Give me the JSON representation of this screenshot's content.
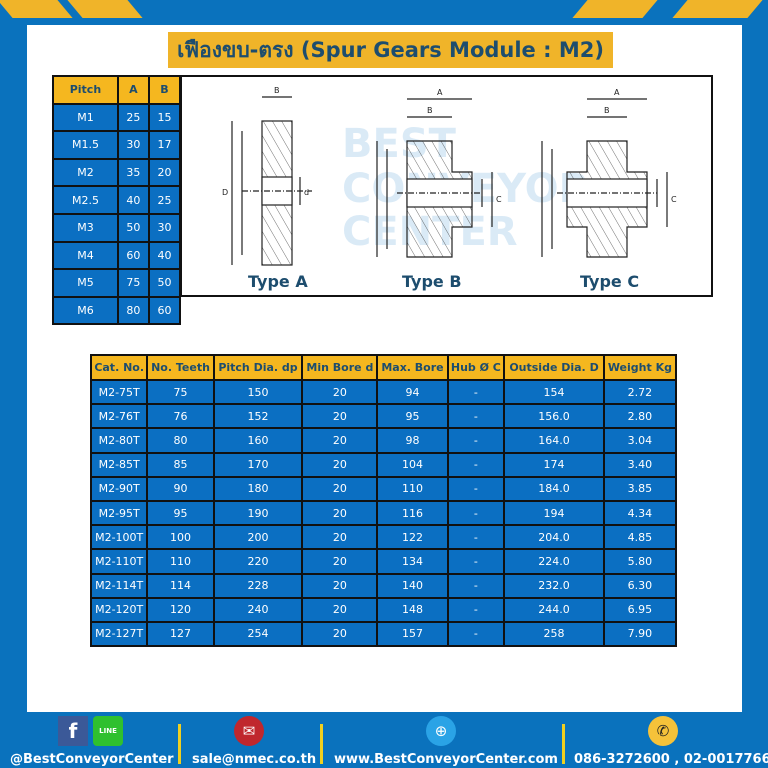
{
  "title": "เฟืองขบ-ตรง (Spur Gears Module : M2)",
  "pitch_table": {
    "headers": [
      "Pitch",
      "A",
      "B"
    ],
    "rows": [
      [
        "M1",
        "25",
        "15"
      ],
      [
        "M1.5",
        "30",
        "17"
      ],
      [
        "M2",
        "35",
        "20"
      ],
      [
        "M2.5",
        "40",
        "25"
      ],
      [
        "M3",
        "50",
        "30"
      ],
      [
        "M4",
        "60",
        "40"
      ],
      [
        "M5",
        "75",
        "50"
      ],
      [
        "M6",
        "80",
        "60"
      ]
    ]
  },
  "diagrams": {
    "types": [
      "Type A",
      "Type B",
      "Type C"
    ],
    "labels": {
      "a": "A",
      "b": "B",
      "c": "C",
      "D": "D",
      "dp": "dp",
      "d": "d"
    },
    "watermark": "BEST CONVEYOR CENTER"
  },
  "spec_table": {
    "headers": [
      "Cat. No.",
      "No. Teeth",
      "Pitch Dia. dp",
      "Min Bore d",
      "Max. Bore",
      "Hub Ø C",
      "Outside Dia. D",
      "Weight Kg"
    ],
    "rows": [
      [
        "M2-75T",
        "75",
        "150",
        "20",
        "94",
        "-",
        "154",
        "2.72"
      ],
      [
        "M2-76T",
        "76",
        "152",
        "20",
        "95",
        "-",
        "156.0",
        "2.80"
      ],
      [
        "M2-80T",
        "80",
        "160",
        "20",
        "98",
        "-",
        "164.0",
        "3.04"
      ],
      [
        "M2-85T",
        "85",
        "170",
        "20",
        "104",
        "-",
        "174",
        "3.40"
      ],
      [
        "M2-90T",
        "90",
        "180",
        "20",
        "110",
        "-",
        "184.0",
        "3.85"
      ],
      [
        "M2-95T",
        "95",
        "190",
        "20",
        "116",
        "-",
        "194",
        "4.34"
      ],
      [
        "M2-100T",
        "100",
        "200",
        "20",
        "122",
        "-",
        "204.0",
        "4.85"
      ],
      [
        "M2-110T",
        "110",
        "220",
        "20",
        "134",
        "-",
        "224.0",
        "5.80"
      ],
      [
        "M2-114T",
        "114",
        "228",
        "20",
        "140",
        "-",
        "232.0",
        "6.30"
      ],
      [
        "M2-120T",
        "120",
        "240",
        "20",
        "148",
        "-",
        "244.0",
        "6.95"
      ],
      [
        "M2-127T",
        "127",
        "254",
        "20",
        "157",
        "-",
        "258",
        "7.90"
      ]
    ]
  },
  "footer": {
    "social": "@BestConveyorCenter",
    "email": "sale@nmec.co.th",
    "website": "www.BestConveyorCenter.com",
    "phone": "086-3272600 , 02-0017766",
    "line_label": "LINE"
  },
  "colors": {
    "blue": "#0a72bd",
    "yellow": "#f0b429",
    "cell_blue": "#0b6fc2",
    "title_text": "#1d4d6e"
  }
}
